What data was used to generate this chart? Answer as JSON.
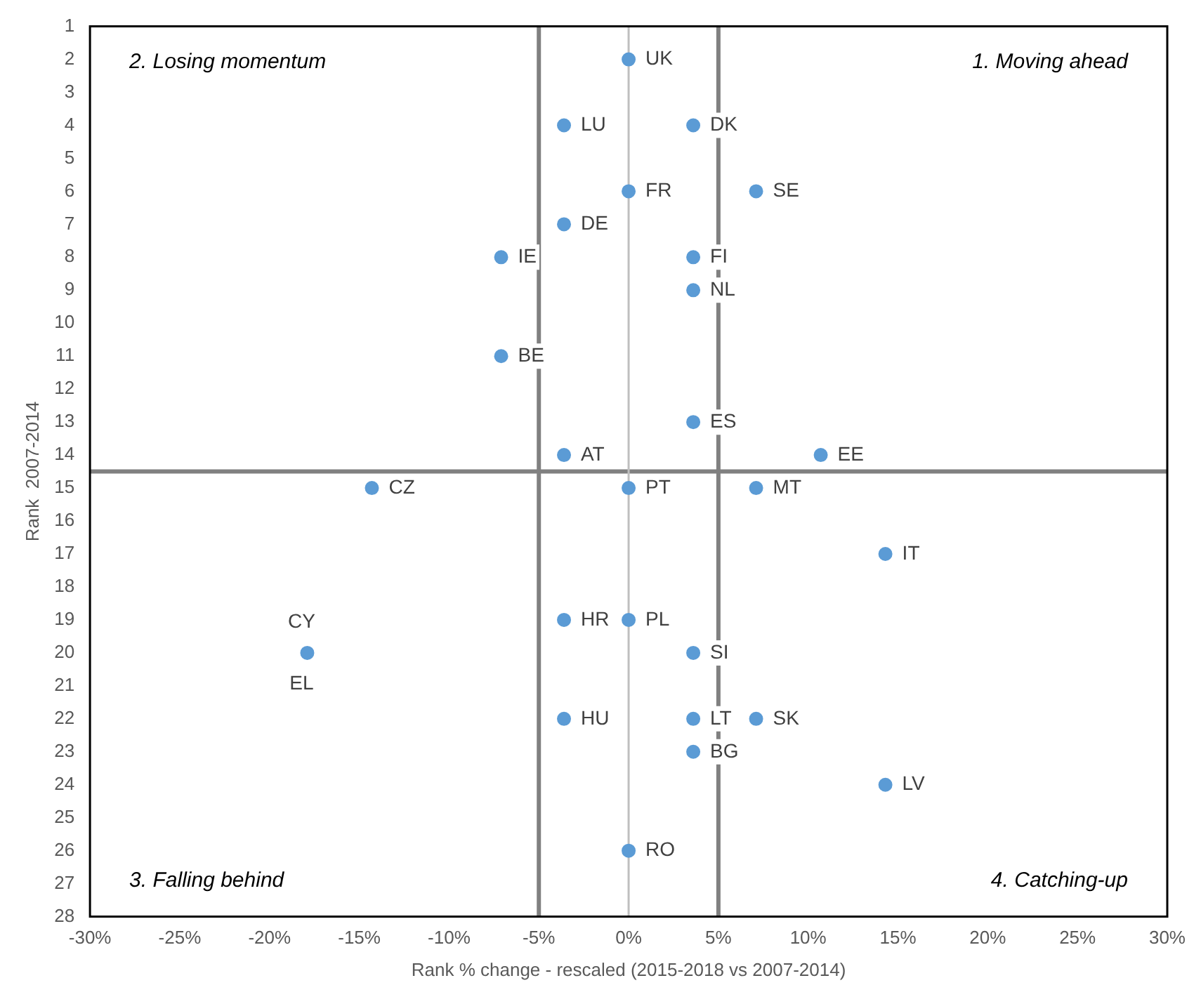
{
  "chart_data": {
    "type": "scatter",
    "xlabel": "Rank % change - rescaled (2015-2018 vs 2007-2014)",
    "ylabel": "Rank  2007-2014",
    "marker": "circle",
    "grid": false,
    "legend": false,
    "xlim": [
      -30,
      30
    ],
    "xticks": [
      {
        "value": -30,
        "label": "-30%"
      },
      {
        "value": -25,
        "label": "-25%"
      },
      {
        "value": -20,
        "label": "-20%"
      },
      {
        "value": -15,
        "label": "-15%"
      },
      {
        "value": -10,
        "label": "-10%"
      },
      {
        "value": -5,
        "label": "-5%"
      },
      {
        "value": 0,
        "label": "0%"
      },
      {
        "value": 5,
        "label": "5%"
      },
      {
        "value": 10,
        "label": "10%"
      },
      {
        "value": 15,
        "label": "15%"
      },
      {
        "value": 20,
        "label": "20%"
      },
      {
        "value": 25,
        "label": "25%"
      },
      {
        "value": 30,
        "label": "30%"
      }
    ],
    "ylim": [
      28,
      1
    ],
    "yticks": [
      1,
      2,
      3,
      4,
      5,
      6,
      7,
      8,
      9,
      10,
      11,
      12,
      13,
      14,
      15,
      16,
      17,
      18,
      19,
      20,
      21,
      22,
      23,
      24,
      25,
      26,
      27,
      28
    ],
    "series": [
      {
        "color": "#5b9bd5",
        "x": [
          0,
          3.6,
          -3.6,
          0,
          7.1,
          -3.6,
          -7.1,
          3.6,
          3.6,
          -7.1,
          3.6,
          -3.6,
          10.7,
          -14.3,
          0,
          7.1,
          14.3,
          -3.6,
          0,
          3.6,
          -17.9,
          null,
          3.6,
          3.6,
          -3.6,
          7.1,
          14.3,
          0
        ],
        "values": [
          2,
          4,
          4,
          6,
          6,
          7,
          8,
          8,
          9,
          11,
          13,
          14,
          14,
          15,
          15,
          15,
          17,
          19,
          19,
          20,
          20,
          null,
          22,
          23,
          22,
          22,
          24,
          26
        ]
      }
    ],
    "ref_lines": [
      {
        "axis": "x",
        "value": -5,
        "color": "#808080"
      },
      {
        "axis": "x",
        "value": 5,
        "color": "#808080"
      },
      {
        "axis": "y",
        "value": 14.5,
        "color": "#808080"
      },
      {
        "axis": "x",
        "value": 0,
        "color": "#bfbfbf"
      }
    ],
    "annotations": [
      "2. Losing momentum",
      "1. Moving ahead",
      "3. Falling behind",
      "4. Catching-up",
      {
        "text": "UK",
        "x": 0,
        "y": 2
      },
      {
        "text": "DK",
        "x": 3.6,
        "y": 4
      },
      {
        "text": "LU",
        "x": -3.6,
        "y": 4
      },
      {
        "text": "FR",
        "x": 0,
        "y": 6
      },
      {
        "text": "SE",
        "x": 7.1,
        "y": 6
      },
      {
        "text": "DE",
        "x": -3.6,
        "y": 7
      },
      {
        "text": "IE",
        "x": -7.1,
        "y": 8
      },
      {
        "text": "FI",
        "x": 3.6,
        "y": 8
      },
      {
        "text": "NL",
        "x": 3.6,
        "y": 9
      },
      {
        "text": "BE",
        "x": -7.1,
        "y": 11
      },
      {
        "text": "ES",
        "x": 3.6,
        "y": 13
      },
      {
        "text": "AT",
        "x": -3.6,
        "y": 14
      },
      {
        "text": "EE",
        "x": 10.7,
        "y": 14
      },
      {
        "text": "CZ",
        "x": -14.3,
        "y": 15
      },
      {
        "text": "PT",
        "x": 0,
        "y": 15
      },
      {
        "text": "MT",
        "x": 7.1,
        "y": 15
      },
      {
        "text": "IT",
        "x": 14.3,
        "y": 17
      },
      {
        "text": "HR",
        "x": -3.6,
        "y": 19
      },
      {
        "text": "PL",
        "x": 0,
        "y": 19
      },
      {
        "text": "SI",
        "x": 3.6,
        "y": 20
      },
      {
        "text": "CY",
        "x": -17.9,
        "y": 20
      },
      {
        "text": "EL",
        "x": -17.9,
        "y": 20
      },
      {
        "text": "LT",
        "x": 3.6,
        "y": 22
      },
      {
        "text": "BG",
        "x": 3.6,
        "y": 23
      },
      {
        "text": "HU",
        "x": -3.6,
        "y": 22
      },
      {
        "text": "SK",
        "x": 7.1,
        "y": 22
      },
      {
        "text": "LV",
        "x": 14.3,
        "y": 24
      },
      {
        "text": "RO",
        "x": 0,
        "y": 26
      }
    ]
  }
}
